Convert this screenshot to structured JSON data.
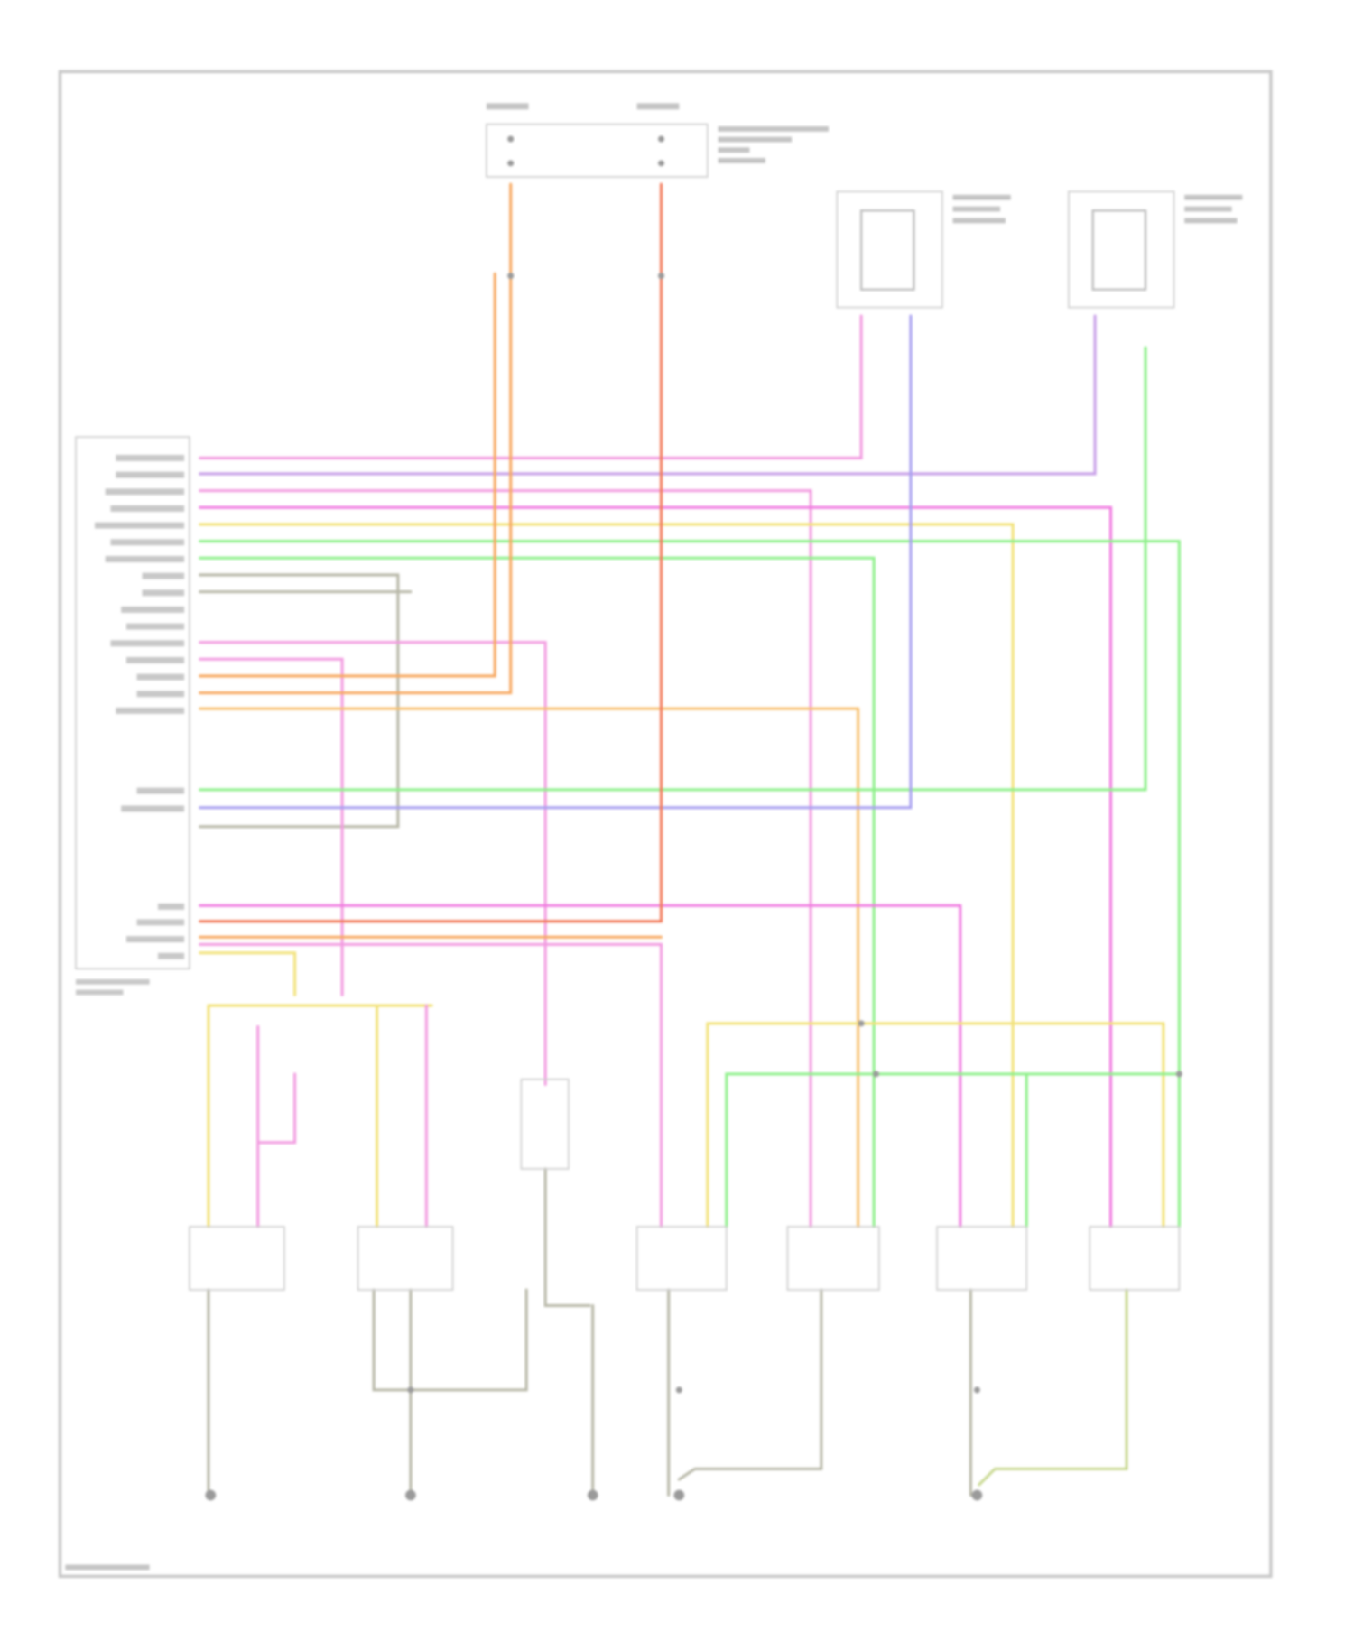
{
  "diagram": {
    "type": "wiring-schematic",
    "wire_colors": {
      "pink": "#f29be0",
      "violet": "#c8a0e8",
      "magenta": "#f07ae0",
      "green": "#8ef08a",
      "yellow": "#f2e27a",
      "orange": "#f7a860",
      "red": "#f27a5a",
      "gray": "#b8b8a8",
      "blue_violet": "#a8a0f0"
    },
    "components": {
      "fuse_box_count": 1,
      "relay_count": 2,
      "control_module_count": 1,
      "switch_count": 7,
      "ground_count": 5
    }
  }
}
